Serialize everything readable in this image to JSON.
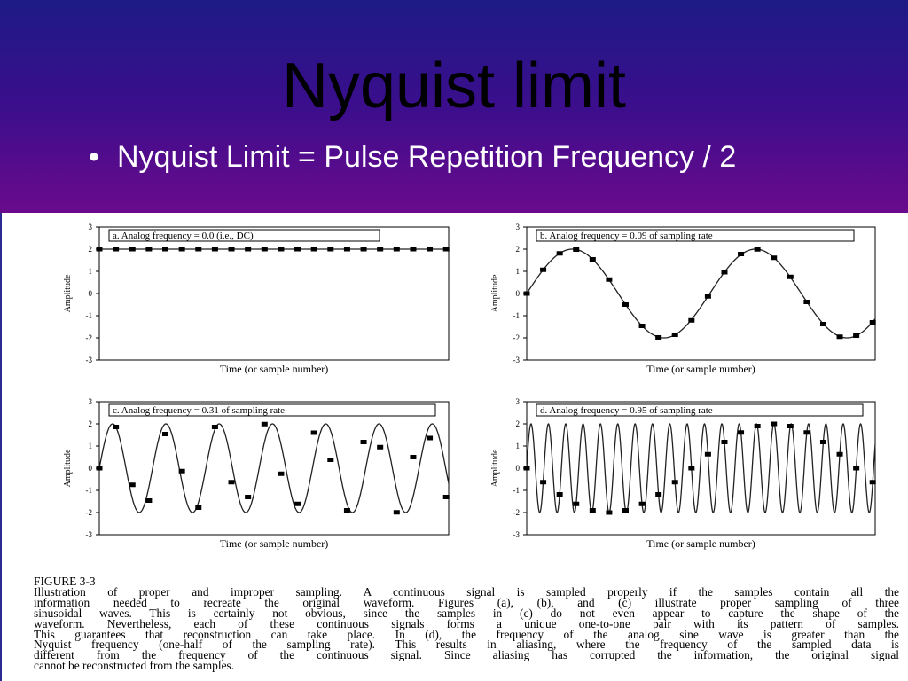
{
  "slide": {
    "title": "Nyquist limit",
    "bullet_glyph": "•",
    "bullet": "Nyquist Limit = Pulse Repetition Frequency / 2"
  },
  "chart_data": [
    {
      "type": "line",
      "panel": "a",
      "title": "a.  Analog frequency = 0.0  (i.e., DC)",
      "xlabel": "Time (or sample number)",
      "ylabel": "Amplitude",
      "ylim": [
        -3,
        3
      ],
      "yticks": [
        3,
        2,
        1,
        0,
        -1,
        -2,
        -3
      ],
      "frequency": 0.0,
      "amplitude": 2,
      "offset": 2,
      "samples_x": [
        0,
        1,
        2,
        3,
        4,
        5,
        6,
        7,
        8,
        9,
        10,
        11,
        12,
        13,
        14,
        15,
        16,
        17,
        18,
        19,
        20,
        21
      ],
      "samples_y": [
        2,
        2,
        2,
        2,
        2,
        2,
        2,
        2,
        2,
        2,
        2,
        2,
        2,
        2,
        2,
        2,
        2,
        2,
        2,
        2,
        2,
        2
      ]
    },
    {
      "type": "line",
      "panel": "b",
      "title": "b.  Analog frequency = 0.09 of sampling rate",
      "xlabel": "Time (or sample number)",
      "ylabel": "Amplitude",
      "ylim": [
        -3,
        3
      ],
      "yticks": [
        3,
        2,
        1,
        0,
        -1,
        -2,
        -3
      ],
      "frequency": 0.09,
      "amplitude": 2,
      "offset": 0,
      "samples_x": [
        0,
        1,
        2,
        3,
        4,
        5,
        6,
        7,
        8,
        9,
        10,
        11,
        12,
        13,
        14,
        15,
        16,
        17,
        18,
        19,
        20,
        21
      ],
      "samples_y": [
        0,
        1.07,
        1.81,
        1.98,
        1.54,
        0.63,
        -0.5,
        -1.46,
        -1.98,
        -1.86,
        -1.21,
        -0.13,
        0.96,
        1.78,
        1.99,
        1.61,
        0.75,
        -0.38,
        -1.38,
        -1.95,
        -1.9,
        -1.3
      ]
    },
    {
      "type": "line",
      "panel": "c",
      "title": "c.  Analog frequency = 0.31 of sampling rate",
      "xlabel": "Time (or sample number)",
      "ylabel": "Amplitude",
      "ylim": [
        -3,
        3
      ],
      "yticks": [
        3,
        2,
        1,
        0,
        -1,
        -2,
        -3
      ],
      "frequency": 0.31,
      "amplitude": 2,
      "offset": 0,
      "samples_x": [
        0,
        1,
        2,
        3,
        4,
        5,
        6,
        7,
        8,
        9,
        10,
        11,
        12,
        13,
        14,
        15,
        16,
        17,
        18,
        19,
        20,
        21
      ],
      "samples_y": [
        0,
        1.86,
        -0.75,
        -1.46,
        1.54,
        -0.13,
        -1.78,
        1.86,
        -0.63,
        -1.3,
        1.99,
        -0.25,
        -1.61,
        1.6,
        0.38,
        -1.9,
        1.18,
        0.95,
        -1.99,
        0.5,
        1.36,
        -1.3
      ]
    },
    {
      "type": "line",
      "panel": "d",
      "title": "d.  Analog frequency = 0.95 of sampling rate",
      "xlabel": "Time (or sample number)",
      "ylabel": "Amplitude",
      "ylim": [
        -3,
        3
      ],
      "yticks": [
        3,
        2,
        1,
        0,
        -1,
        -2,
        -3
      ],
      "frequency": 0.95,
      "amplitude": 2,
      "offset": 0,
      "samples_x": [
        0,
        1,
        2,
        3,
        4,
        5,
        6,
        7,
        8,
        9,
        10,
        11,
        12,
        13,
        14,
        15,
        16,
        17,
        18,
        19,
        20,
        21
      ],
      "samples_y": [
        0,
        -0.63,
        -1.18,
        -1.61,
        -1.9,
        -2.0,
        -1.9,
        -1.61,
        -1.18,
        -0.63,
        0,
        0.63,
        1.18,
        1.61,
        1.9,
        2.0,
        1.9,
        1.61,
        1.18,
        0.63,
        0,
        -0.63
      ]
    }
  ],
  "caption": {
    "label": "FIGURE 3-3",
    "lines": [
      "Illustration of proper and improper sampling. A continuous signal is sampled properly if the samples contain all the",
      "information needed to recreate the original waveform.  Figures (a), (b), and (c) illustrate proper sampling of three",
      "sinusoidal waves. This is certainly not obvious, since the samples in (c) do not even appear to capture the shape of the",
      "waveform. Nevertheless, each of these continuous signals forms a unique one-to-one pair with its pattern of samples.",
      "This guarantees that reconstruction can take place.  In (d), the frequency of the analog sine wave is greater than the",
      "Nyquist frequency (one-half of the sampling rate).  This results in aliasing, where the frequency of the sampled data is",
      "different from the frequency of the continuous signal.  Since aliasing has corrupted the information, the original signal",
      "cannot be reconstructed from the samples."
    ]
  }
}
